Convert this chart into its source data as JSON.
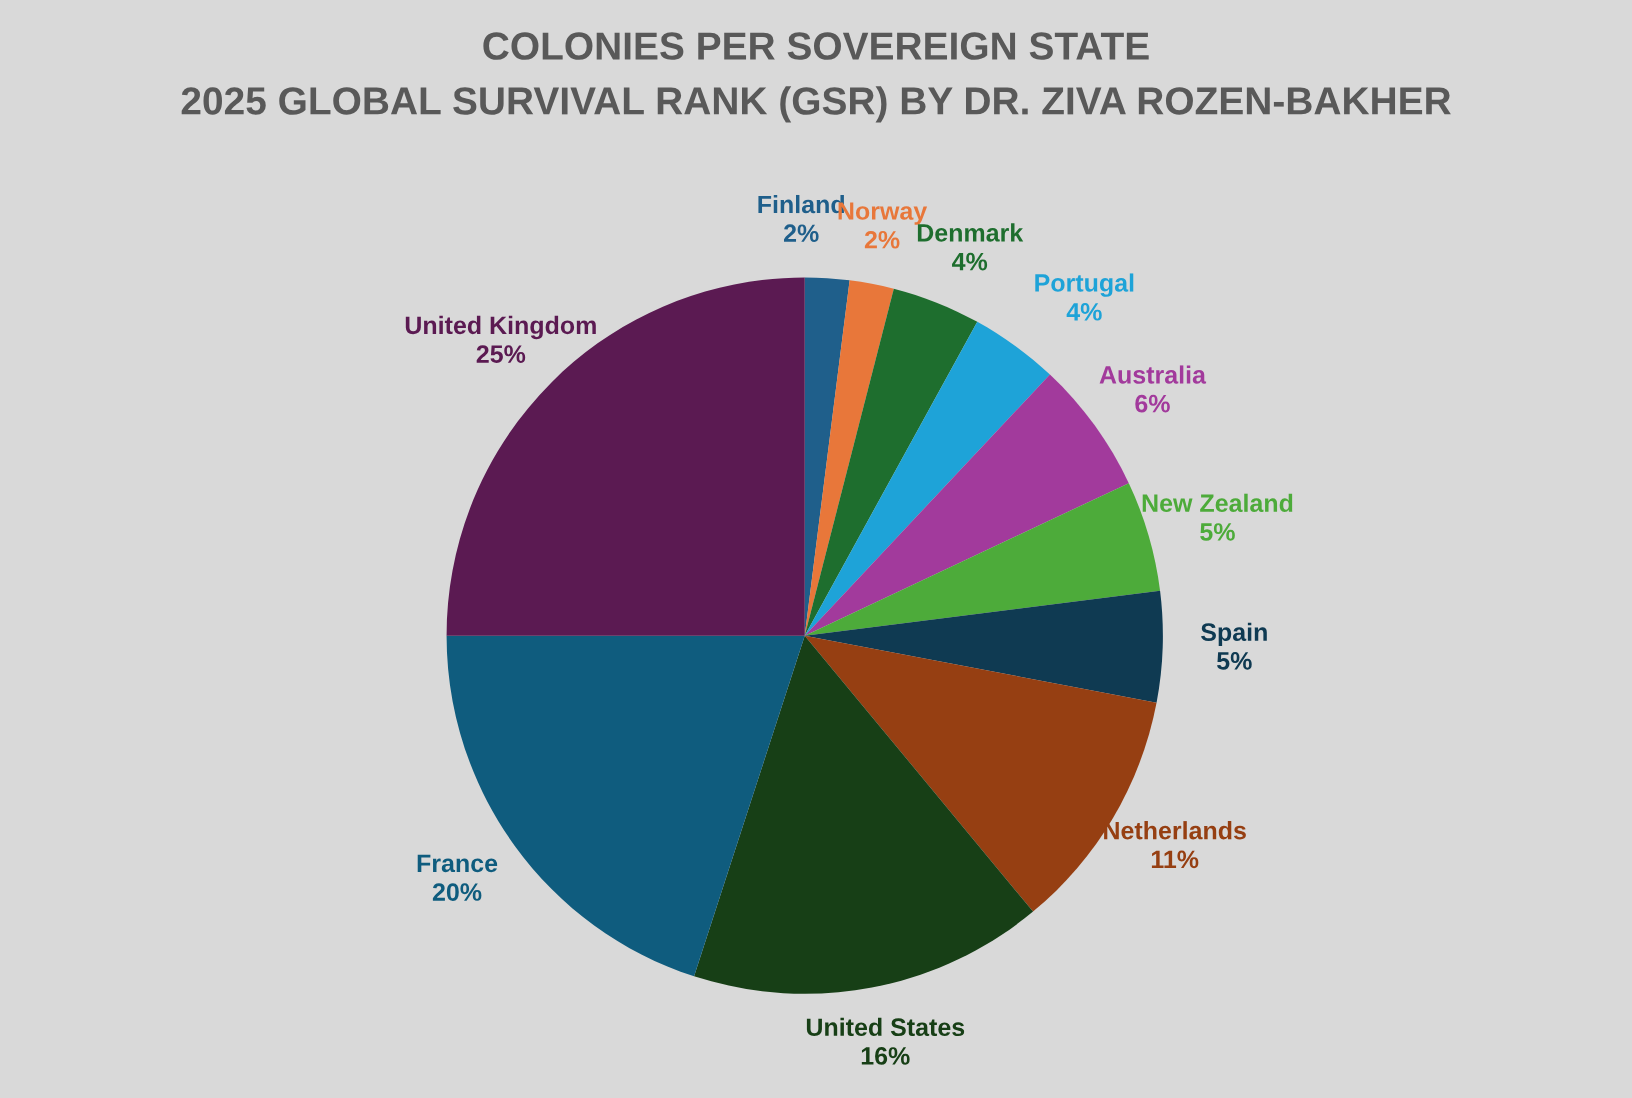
{
  "chart_data": {
    "type": "pie",
    "title": "COLONIES PER SOVEREIGN STATE",
    "subtitle": "2025 GLOBAL SURVIVAL RANK (GSR) BY DR. ZIVA ROZEN-BAKHER",
    "categories": [
      "Finland",
      "Norway",
      "Denmark",
      "Portugal",
      "Australia",
      "New Zealand",
      "Spain",
      "Netherlands",
      "United States",
      "France",
      "United Kingdom"
    ],
    "values": [
      2,
      2,
      4,
      4,
      6,
      5,
      5,
      11,
      16,
      20,
      25
    ],
    "value_labels": [
      "2%",
      "2%",
      "4%",
      "4%",
      "6%",
      "5%",
      "5%",
      "11%",
      "16%",
      "20%",
      "25%"
    ],
    "colors": [
      "#1f5f8b",
      "#e8773a",
      "#1e6e2e",
      "#1ea3d8",
      "#a23a9c",
      "#4dab3a",
      "#0f3a52",
      "#963f12",
      "#173f16",
      "#0f5c7e",
      "#5b1a52"
    ],
    "legend": false
  }
}
